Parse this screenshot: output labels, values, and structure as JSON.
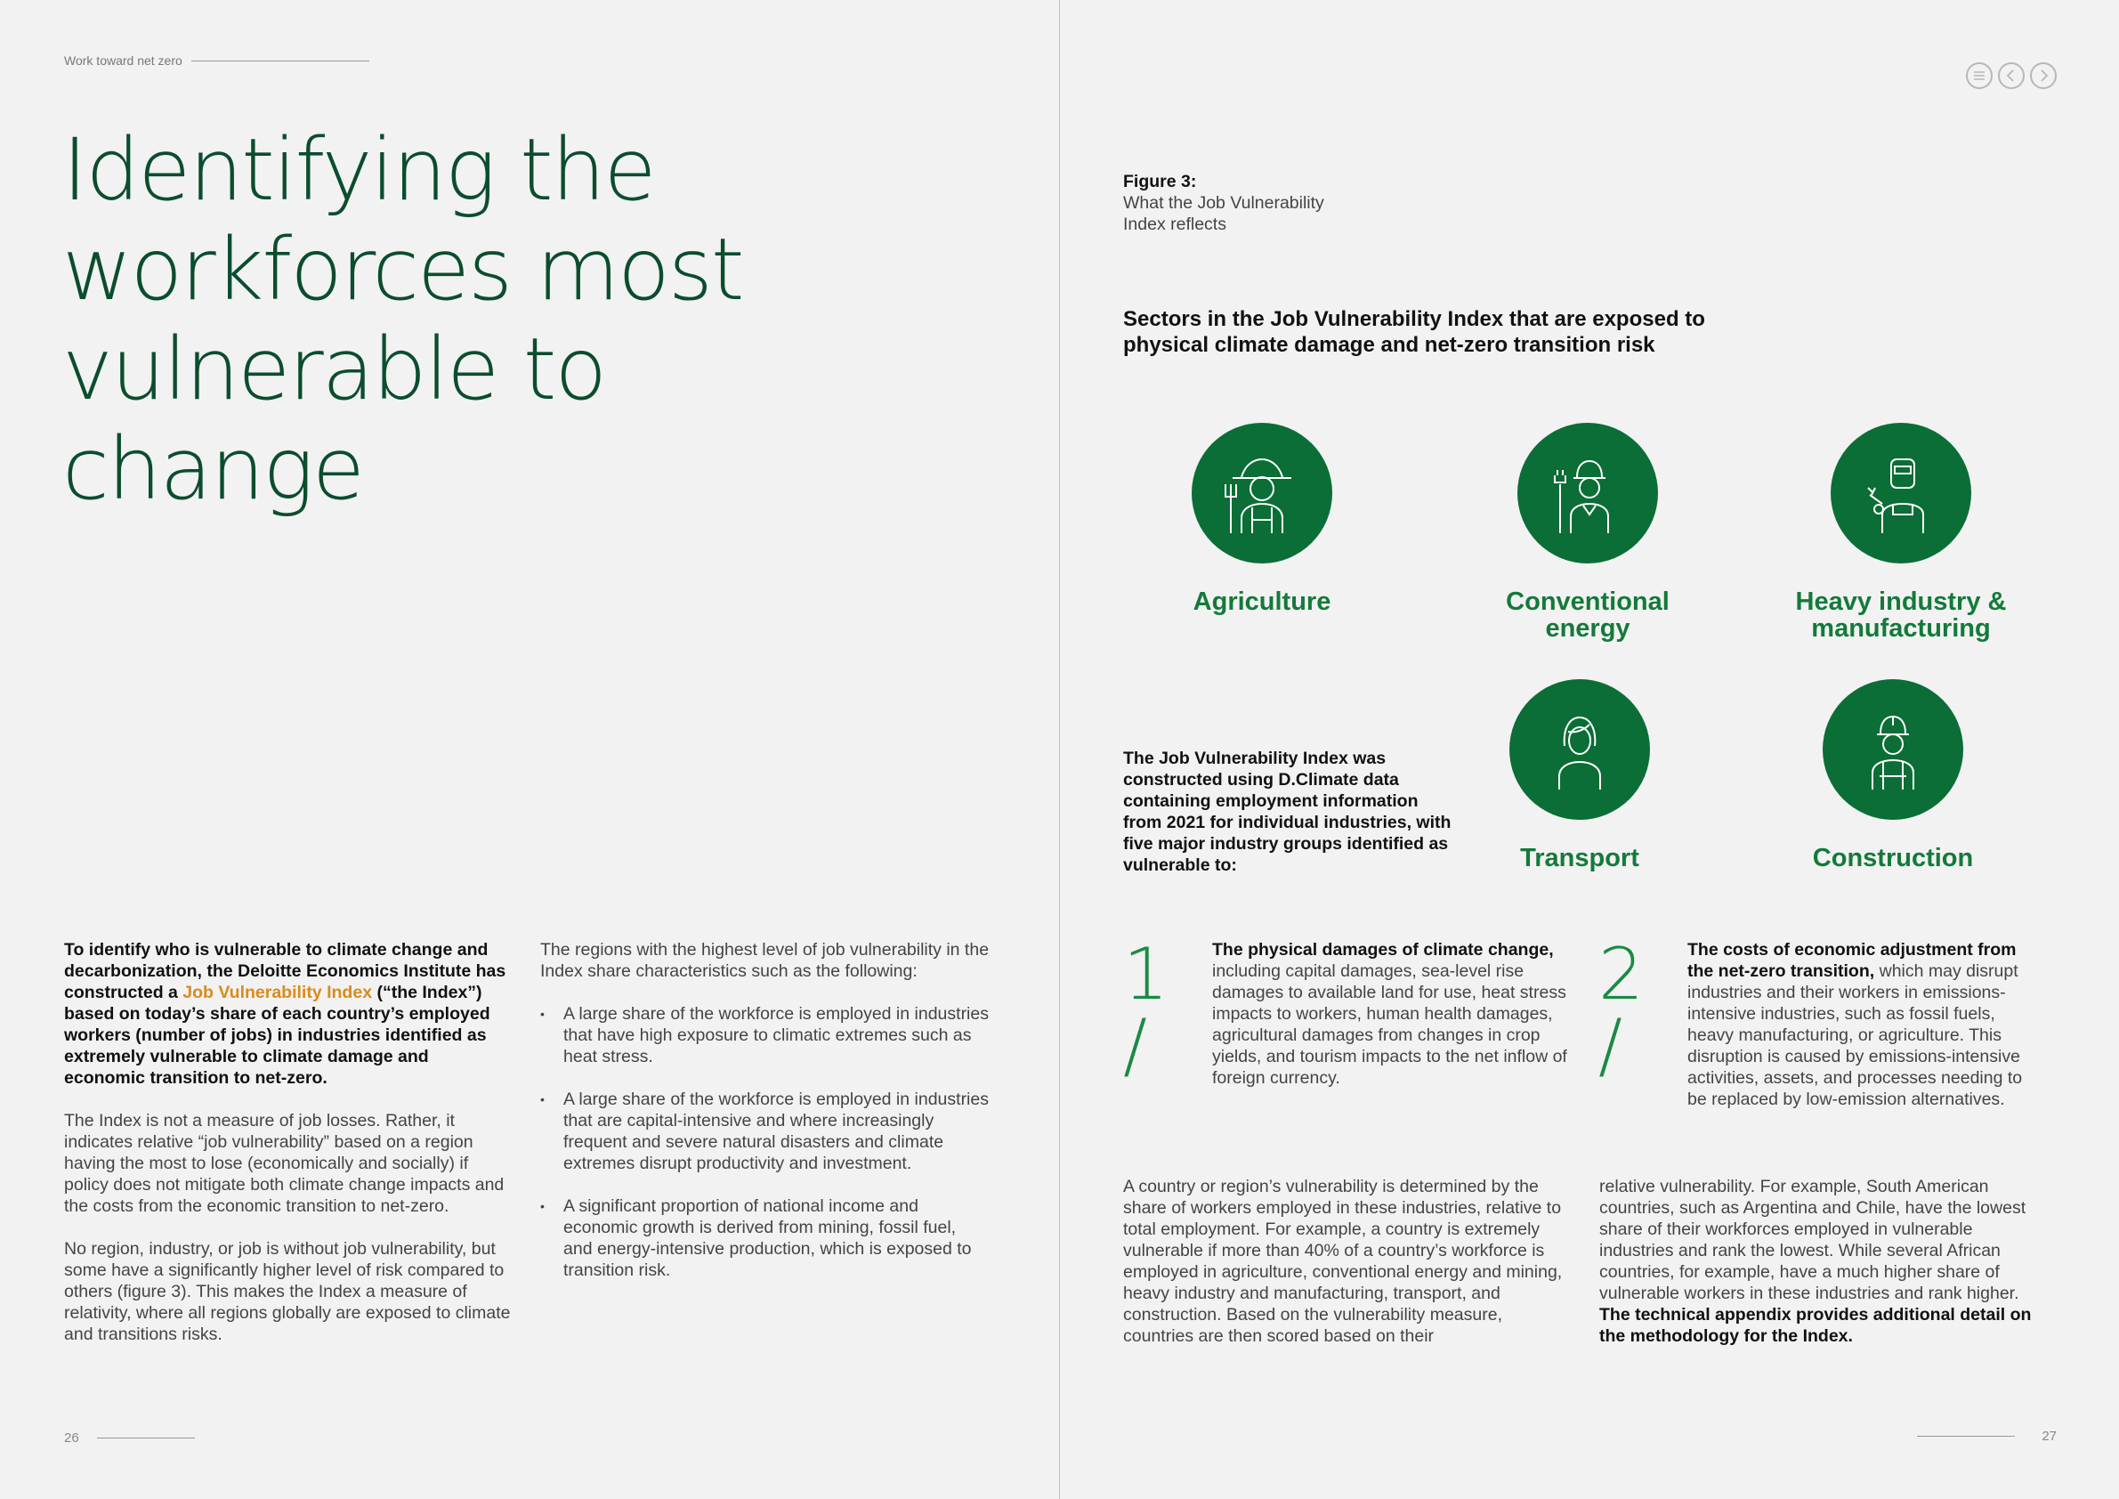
{
  "header": {
    "section_label": "Work toward net zero"
  },
  "nav": {
    "menu_icon": "menu-lines-icon",
    "prev_icon": "chevron-left-icon",
    "next_icon": "chevron-right-icon"
  },
  "title_lines": [
    "Identifying the",
    "workforces most",
    "vulnerable to",
    "change"
  ],
  "left_col1": {
    "intro_part1": "To identify who is vulnerable to climate change and decarbonization, the Deloitte Economics Institute has constructed a ",
    "intro_link": "Job Vulnerability Index",
    "intro_part2": " (“the Index”) based on today’s share of each country’s employed workers (number of jobs) in industries identified as extremely vulnerable to climate damage and economic transition to net-zero.",
    "para2": "The Index is not a measure of job losses. Rather, it indicates relative “job vulnerability” based on a region having the most to lose (economically and socially) if policy does not mitigate both climate change impacts and the costs from the economic transition to net-zero.",
    "para3": "No region, industry, or job is without job vulnerability, but some have a significantly higher level of risk compared to others (figure 3). This makes the Index a measure of relativity, where all regions globally are exposed to climate and transitions risks."
  },
  "left_col2": {
    "intro": "The regions with the highest level of job vulnerability in the Index share characteristics such as the following:",
    "bullets": [
      "A large share of the workforce is employed in industries that have high exposure to climatic extremes such as heat stress.",
      "A large share of the workforce is employed in industries that are capital-intensive and where increasingly frequent and severe natural disasters and climate extremes disrupt productivity and investment.",
      "A significant proportion of national income and economic growth is derived from mining, fossil fuel, and energy-intensive production, which is exposed to transition risk."
    ]
  },
  "figure": {
    "label": "Figure 3:",
    "caption_line1": "What the Job Vulnerability",
    "caption_line2": "Index reflects",
    "heading_line1": "Sectors in the Job Vulnerability Index that are exposed to",
    "heading_line2": "physical climate damage and net-zero transition risk",
    "sectors": [
      {
        "line1": "Agriculture",
        "line2": "",
        "icon": "farmer-icon"
      },
      {
        "line1": "Conventional",
        "line2": "energy",
        "icon": "energy-worker-icon"
      },
      {
        "line1": "Heavy industry &",
        "line2": "manufacturing",
        "icon": "welder-icon"
      },
      {
        "line1": "Transport",
        "line2": "",
        "icon": "transport-worker-icon"
      },
      {
        "line1": "Construction",
        "line2": "",
        "icon": "construction-worker-icon"
      }
    ],
    "index_note": "The Job Vulnerability Index was constructed using D.Climate data containing employment information from 2021 for individual industries, with five major industry groups identified as vulnerable to:"
  },
  "points": [
    {
      "number": "1 /",
      "bold": "The physical damages of climate change,",
      "text": " including capital damages, sea-level rise damages to available land for use, heat stress impacts to workers, human health damages, agricultural damages from changes in crop yields, and tourism impacts to the net inflow of foreign currency."
    },
    {
      "number": "2 /",
      "bold": "The costs of economic adjustment from the net-zero transition,",
      "text": " which may disrupt industries and their workers in emissions-intensive industries, such as fossil fuels, heavy manufacturing, or agriculture. This disruption is caused by emissions-intensive activities, assets, and processes needing to be replaced by low-emission alternatives."
    }
  ],
  "right_col1": "A country or region’s vulnerability is determined by the share of workers employed in these industries, relative to total employment. For example, a country is extremely vulnerable if more than 40% of a country’s workforce is employed in agriculture, conventional energy and mining, heavy industry and manufacturing, transport, and construction. Based on the vulnerability measure, countries are then scored based on their",
  "right_col2": {
    "text": "relative vulnerability. For example, South American countries, such as Argentina and Chile, have the lowest share of their workforces employed in vulnerable industries and rank the lowest. While several African countries, for example, have a much higher share of vulnerable workers in these industries and rank higher. ",
    "bold": "The technical appendix provides additional detail on the methodology for the Index."
  },
  "footer": {
    "left_page": "26",
    "right_page": "27"
  },
  "colors": {
    "title_green": "#0b4d2e",
    "circle_green": "#0a6e36",
    "label_green": "#137a3a",
    "accent_orange": "#d98b1a"
  }
}
